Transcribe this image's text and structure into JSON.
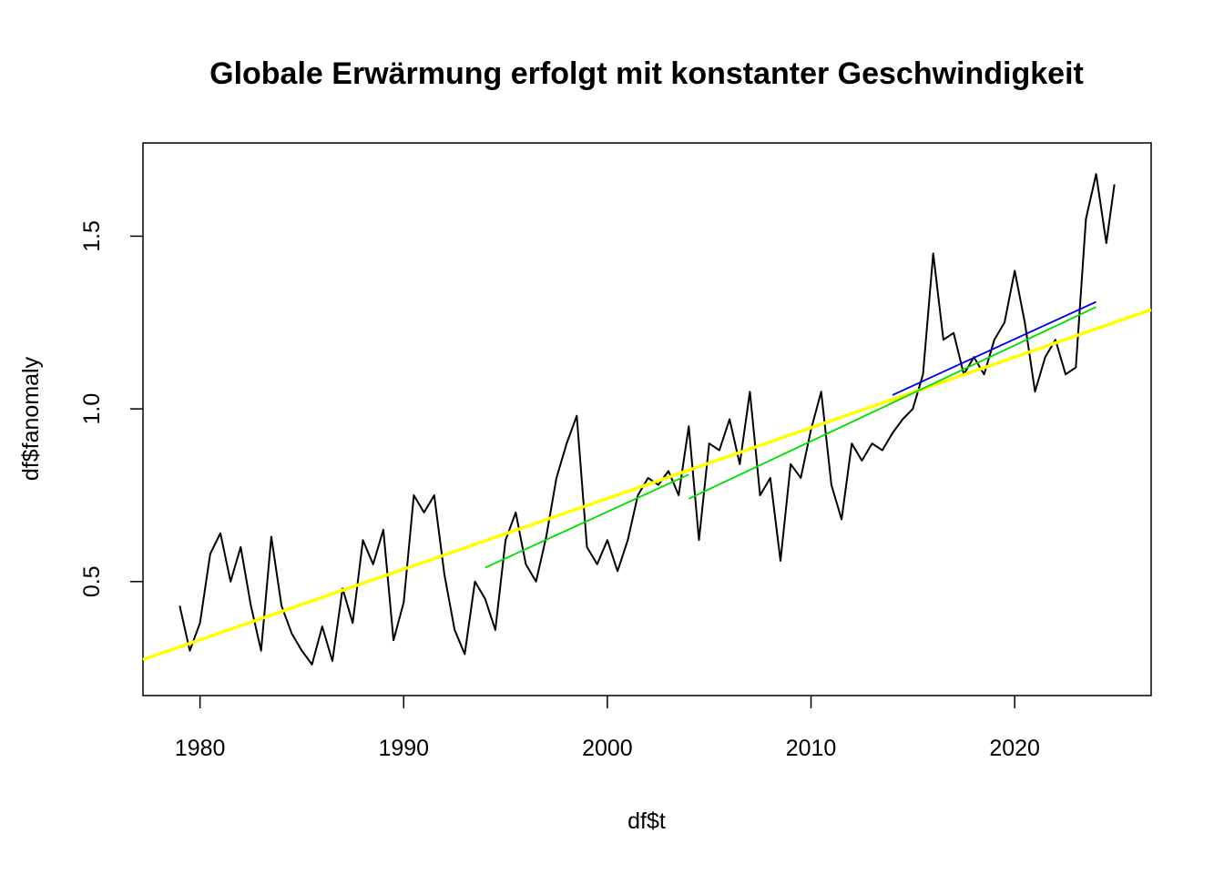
{
  "chart_data": {
    "type": "line",
    "title": "Globale Erwärmung erfolgt mit konstanter Geschwindigkeit",
    "xlabel": "df$t",
    "ylabel": "df$fanomaly",
    "xlim": [
      1977.2,
      2026.7
    ],
    "ylim": [
      0.17,
      1.77
    ],
    "x_ticks": [
      {
        "value": 1980,
        "label": "1980"
      },
      {
        "value": 1990,
        "label": "1990"
      },
      {
        "value": 2000,
        "label": "2000"
      },
      {
        "value": 2010,
        "label": "2010"
      },
      {
        "value": 2020,
        "label": "2020"
      }
    ],
    "y_ticks": [
      {
        "value": 0.5,
        "label": "0.5"
      },
      {
        "value": 1.0,
        "label": "1.0"
      },
      {
        "value": 1.5,
        "label": "1.5"
      }
    ],
    "series": [
      {
        "color": "#000000",
        "x": [
          1979.0,
          1979.5,
          1980.0,
          1980.5,
          1981.0,
          1981.5,
          1982.0,
          1982.5,
          1983.0,
          1983.5,
          1984.0,
          1984.5,
          1985.0,
          1985.5,
          1986.0,
          1986.5,
          1987.0,
          1987.5,
          1988.0,
          1988.5,
          1989.0,
          1989.5,
          1990.0,
          1990.5,
          1991.0,
          1991.5,
          1992.0,
          1992.5,
          1993.0,
          1993.5,
          1994.0,
          1994.5,
          1995.0,
          1995.5,
          1996.0,
          1996.5,
          1997.0,
          1997.5,
          1998.0,
          1998.5,
          1999.0,
          1999.5,
          2000.0,
          2000.5,
          2001.0,
          2001.5,
          2002.0,
          2002.5,
          2003.0,
          2003.5,
          2004.0,
          2004.5,
          2005.0,
          2005.5,
          2006.0,
          2006.5,
          2007.0,
          2007.5,
          2008.0,
          2008.5,
          2009.0,
          2009.5,
          2010.0,
          2010.5,
          2011.0,
          2011.5,
          2012.0,
          2012.5,
          2013.0,
          2013.5,
          2014.0,
          2014.5,
          2015.0,
          2015.5,
          2016.0,
          2016.5,
          2017.0,
          2017.5,
          2018.0,
          2018.5,
          2019.0,
          2019.5,
          2020.0,
          2020.5,
          2021.0,
          2021.5,
          2022.0,
          2022.5,
          2023.0,
          2023.5,
          2024.0,
          2024.5,
          2024.9
        ],
        "values": [
          0.43,
          0.3,
          0.38,
          0.58,
          0.64,
          0.5,
          0.6,
          0.43,
          0.3,
          0.63,
          0.43,
          0.35,
          0.3,
          0.26,
          0.37,
          0.27,
          0.48,
          0.38,
          0.62,
          0.55,
          0.65,
          0.33,
          0.44,
          0.75,
          0.7,
          0.75,
          0.52,
          0.36,
          0.29,
          0.5,
          0.45,
          0.36,
          0.62,
          0.7,
          0.55,
          0.5,
          0.63,
          0.8,
          0.9,
          0.98,
          0.6,
          0.55,
          0.62,
          0.53,
          0.62,
          0.75,
          0.8,
          0.78,
          0.82,
          0.75,
          0.95,
          0.62,
          0.9,
          0.88,
          0.97,
          0.84,
          1.05,
          0.75,
          0.8,
          0.56,
          0.84,
          0.8,
          0.94,
          1.05,
          0.78,
          0.68,
          0.9,
          0.85,
          0.9,
          0.88,
          0.93,
          0.97,
          1.0,
          1.1,
          1.45,
          1.2,
          1.22,
          1.1,
          1.15,
          1.1,
          1.2,
          1.25,
          1.4,
          1.25,
          1.05,
          1.15,
          1.2,
          1.1,
          1.12,
          1.55,
          1.68,
          1.48,
          1.65
        ]
      },
      {
        "color": "#ffff00",
        "x": [
          1977.2,
          2026.7
        ],
        "values": [
          0.274,
          1.287
        ]
      },
      {
        "color": "#00dd00",
        "x": [
          1994.0,
          2004.0
        ],
        "values": [
          0.54,
          0.81
        ]
      },
      {
        "color": "#00dd00",
        "x": [
          2004.0,
          2024.0
        ],
        "values": [
          0.74,
          1.295
        ]
      },
      {
        "color": "#0000dd",
        "x": [
          2014.0,
          2024.0
        ],
        "values": [
          1.04,
          1.31
        ]
      }
    ],
    "grid": false,
    "legend": "none"
  }
}
